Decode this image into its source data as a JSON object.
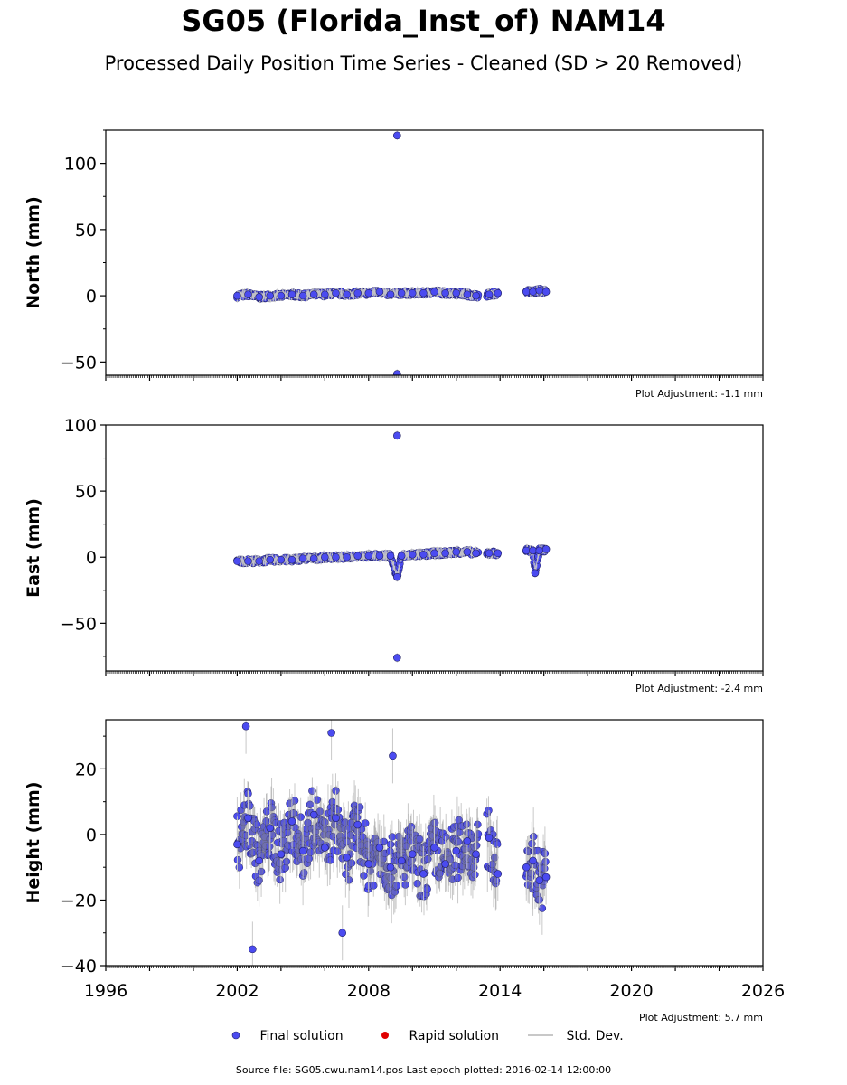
{
  "header": {
    "title": "SG05 (Florida_Inst_of) NAM14",
    "subtitle": "Processed Daily Position Time Series - Cleaned (SD > 20 Removed)"
  },
  "legend": {
    "final": "Final solution",
    "rapid": "Rapid solution",
    "std": "Std. Dev."
  },
  "footer": {
    "source": "Source file: SG05.cwu.nam14.pos  Last epoch plotted: 2016-02-14 12:00:00"
  },
  "colors": {
    "final": "#4b4bf0",
    "rapid": "#e00000",
    "std": "#c8c8c8",
    "edge": "#202060"
  },
  "chart_data": [
    {
      "type": "scatter",
      "ylabel": "North (mm)",
      "xlim": [
        1996,
        2026
      ],
      "ylim": [
        -60,
        125
      ],
      "yticks": [
        -50,
        0,
        50,
        100
      ],
      "adjustment": "Plot Adjustment: -1.1 mm",
      "series": [
        {
          "name": "Final solution",
          "x": [
            2002.0,
            2002.5,
            2003.0,
            2003.5,
            2004.0,
            2004.5,
            2005.0,
            2005.5,
            2006.0,
            2006.5,
            2007.0,
            2007.5,
            2008.0,
            2008.5,
            2009.0,
            2009.5,
            2010.0,
            2010.5,
            2011.0,
            2011.5,
            2012.0,
            2012.5,
            2012.9,
            2013.5,
            2013.9,
            2015.2,
            2015.5,
            2015.8,
            2016.1,
            2009.3,
            2009.3
          ],
          "y": [
            0,
            1,
            -1,
            0,
            0,
            1,
            0,
            1,
            1,
            2,
            1,
            2,
            2,
            3,
            1,
            2,
            2,
            2,
            3,
            2,
            2,
            1,
            0,
            1,
            2,
            3,
            3,
            4,
            3,
            121,
            -59
          ]
        }
      ]
    },
    {
      "type": "scatter",
      "ylabel": "East (mm)",
      "xlim": [
        1996,
        2026
      ],
      "ylim": [
        -86,
        100
      ],
      "yticks": [
        -50,
        0,
        50,
        100
      ],
      "adjustment": "Plot Adjustment: -2.4 mm",
      "series": [
        {
          "name": "Final solution",
          "x": [
            2002.0,
            2002.5,
            2003.0,
            2003.5,
            2004.0,
            2004.5,
            2005.0,
            2005.5,
            2006.0,
            2006.5,
            2007.0,
            2007.5,
            2008.0,
            2008.5,
            2009.0,
            2009.5,
            2010.0,
            2010.5,
            2011.0,
            2011.5,
            2012.0,
            2012.5,
            2012.9,
            2013.5,
            2013.9,
            2015.2,
            2015.5,
            2015.8,
            2016.1,
            2009.3,
            2009.3,
            2009.3,
            2015.6
          ],
          "y": [
            -3,
            -3,
            -3,
            -2,
            -2,
            -2,
            -1,
            -1,
            0,
            0,
            0,
            1,
            1,
            1,
            1,
            1,
            2,
            2,
            3,
            3,
            4,
            4,
            3,
            3,
            3,
            5,
            5,
            5,
            6,
            92,
            -15,
            -76,
            -12
          ]
        }
      ]
    },
    {
      "type": "scatter",
      "ylabel": "Height (mm)",
      "xlim": [
        1996,
        2026
      ],
      "ylim": [
        -40,
        35
      ],
      "yticks": [
        -40,
        -20,
        0,
        20
      ],
      "xticks": [
        1996,
        2002,
        2008,
        2014,
        2020,
        2026
      ],
      "adjustment": "Plot Adjustment: 5.7 mm",
      "series": [
        {
          "name": "Final solution",
          "x": [
            2002.0,
            2002.5,
            2003.0,
            2003.5,
            2004.0,
            2004.5,
            2005.0,
            2005.5,
            2006.0,
            2006.5,
            2007.0,
            2007.5,
            2008.0,
            2008.5,
            2009.0,
            2009.5,
            2010.0,
            2010.5,
            2011.0,
            2011.5,
            2012.0,
            2012.5,
            2012.9,
            2013.5,
            2013.9,
            2015.2,
            2015.5,
            2015.8,
            2016.1,
            2002.4,
            2006.3,
            2002.7,
            2006.8,
            2009.1
          ],
          "y": [
            -3,
            5,
            -8,
            2,
            -6,
            4,
            -5,
            6,
            -4,
            5,
            -7,
            3,
            -9,
            -4,
            -10,
            -8,
            -6,
            -12,
            -4,
            -9,
            -5,
            -2,
            -6,
            -1,
            -12,
            -10,
            -8,
            -14,
            -13,
            33,
            31,
            -35,
            -30,
            24
          ]
        }
      ]
    }
  ]
}
